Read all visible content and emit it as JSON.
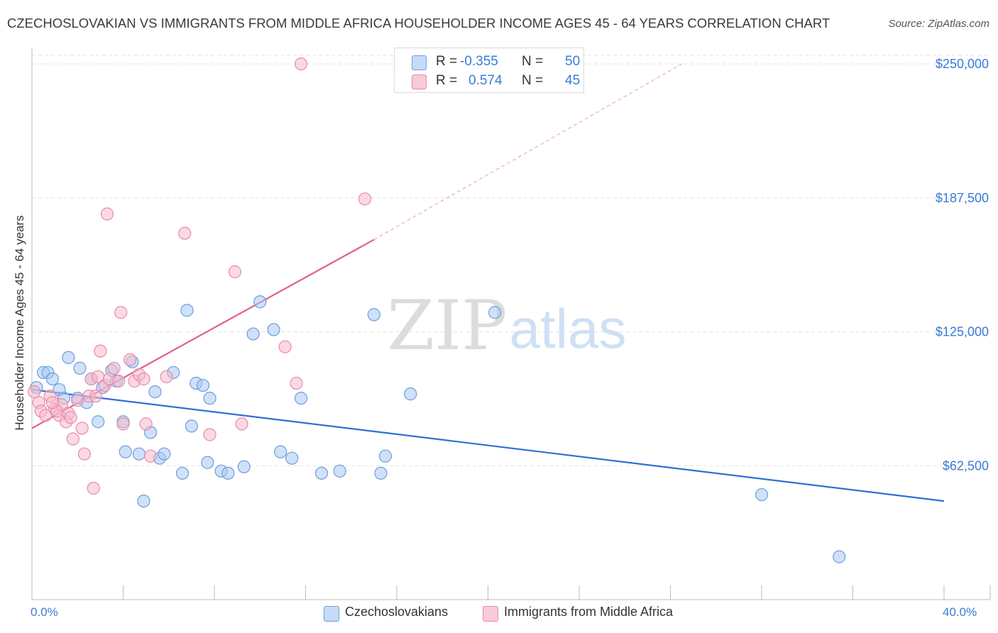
{
  "title": "CZECHOSLOVAKIAN VS IMMIGRANTS FROM MIDDLE AFRICA HOUSEHOLDER INCOME AGES 45 - 64 YEARS CORRELATION CHART",
  "source": "Source: ZipAtlas.com",
  "watermark": {
    "zip": "ZIP",
    "atlas": "atlas"
  },
  "colors": {
    "blue_fill": "#a9c8f0",
    "blue_stroke": "#6a9ee0",
    "blue_line": "#2f6fd6",
    "pink_fill": "#f6b9cc",
    "pink_stroke": "#e98aa8",
    "pink_line": "#e0608a",
    "axis_text": "#3a7bd5"
  },
  "legend": {
    "row1": {
      "r_label": "R =",
      "r_value": "-0.355",
      "n_label": "N =",
      "n_value": "50"
    },
    "row2": {
      "r_label": "R =",
      "r_value": "0.574",
      "n_label": "N =",
      "n_value": "45"
    }
  },
  "bottom_legend": {
    "series1": "Czechoslovakians",
    "series2": "Immigrants from Middle Africa"
  },
  "chart_data": {
    "type": "scatter",
    "xlabel": "",
    "ylabel": "Householder Income Ages 45 - 64 years",
    "xlim": [
      0,
      40
    ],
    "ylim": [
      0,
      255000
    ],
    "x_tick_labels": [
      "0.0%",
      "40.0%"
    ],
    "y_ticks": [
      62500,
      125000,
      187500,
      250000
    ],
    "y_tick_labels": [
      "$62,500",
      "$125,000",
      "$187,500",
      "$250,000"
    ],
    "grid": true,
    "series": [
      {
        "name": "Czechoslovakians",
        "points": [
          [
            0.2,
            99000
          ],
          [
            0.5,
            106000
          ],
          [
            0.7,
            106000
          ],
          [
            0.9,
            103000
          ],
          [
            1.2,
            98000
          ],
          [
            1.4,
            94000
          ],
          [
            1.6,
            113000
          ],
          [
            2.0,
            94000
          ],
          [
            2.1,
            108000
          ],
          [
            2.4,
            92000
          ],
          [
            2.6,
            103000
          ],
          [
            2.9,
            83000
          ],
          [
            3.1,
            99000
          ],
          [
            3.5,
            107000
          ],
          [
            3.7,
            102000
          ],
          [
            4.0,
            83000
          ],
          [
            4.1,
            69000
          ],
          [
            4.4,
            111000
          ],
          [
            4.7,
            68000
          ],
          [
            4.9,
            46000
          ],
          [
            5.2,
            78000
          ],
          [
            5.4,
            97000
          ],
          [
            5.6,
            66000
          ],
          [
            5.8,
            68000
          ],
          [
            6.2,
            106000
          ],
          [
            6.6,
            59000
          ],
          [
            6.8,
            135000
          ],
          [
            7.0,
            81000
          ],
          [
            7.2,
            101000
          ],
          [
            7.5,
            100000
          ],
          [
            7.7,
            64000
          ],
          [
            7.8,
            94000
          ],
          [
            8.3,
            60000
          ],
          [
            8.6,
            59000
          ],
          [
            9.3,
            62000
          ],
          [
            9.7,
            124000
          ],
          [
            10.0,
            139000
          ],
          [
            10.6,
            126000
          ],
          [
            10.9,
            69000
          ],
          [
            11.4,
            66000
          ],
          [
            11.8,
            94000
          ],
          [
            12.7,
            59000
          ],
          [
            13.5,
            60000
          ],
          [
            15.0,
            133000
          ],
          [
            15.3,
            59000
          ],
          [
            15.5,
            67000
          ],
          [
            16.6,
            96000
          ],
          [
            20.3,
            134000
          ],
          [
            32.0,
            49000
          ],
          [
            35.4,
            20000
          ]
        ]
      },
      {
        "name": "Immigrants from Middle Africa",
        "points": [
          [
            0.1,
            97000
          ],
          [
            0.3,
            92000
          ],
          [
            0.4,
            88000
          ],
          [
            0.6,
            86000
          ],
          [
            0.8,
            95000
          ],
          [
            1.0,
            89000
          ],
          [
            1.2,
            86000
          ],
          [
            1.3,
            91000
          ],
          [
            1.5,
            83000
          ],
          [
            1.6,
            87000
          ],
          [
            1.7,
            85000
          ],
          [
            1.8,
            75000
          ],
          [
            2.0,
            93000
          ],
          [
            2.2,
            80000
          ],
          [
            2.3,
            68000
          ],
          [
            2.5,
            95000
          ],
          [
            2.6,
            103000
          ],
          [
            2.7,
            52000
          ],
          [
            2.9,
            104000
          ],
          [
            3.0,
            116000
          ],
          [
            3.2,
            100000
          ],
          [
            3.3,
            180000
          ],
          [
            3.4,
            103000
          ],
          [
            3.6,
            108000
          ],
          [
            3.8,
            102000
          ],
          [
            3.9,
            134000
          ],
          [
            4.0,
            82000
          ],
          [
            4.3,
            112000
          ],
          [
            4.5,
            102000
          ],
          [
            4.7,
            105000
          ],
          [
            4.9,
            103000
          ],
          [
            5.0,
            82000
          ],
          [
            5.2,
            67000
          ],
          [
            5.9,
            104000
          ],
          [
            6.7,
            171000
          ],
          [
            7.8,
            77000
          ],
          [
            8.9,
            153000
          ],
          [
            9.2,
            82000
          ],
          [
            11.1,
            118000
          ],
          [
            11.6,
            101000
          ],
          [
            11.8,
            250000
          ],
          [
            14.6,
            187000
          ],
          [
            1.1,
            88000
          ],
          [
            2.8,
            95000
          ],
          [
            0.9,
            92000
          ]
        ]
      }
    ],
    "trend_lines": [
      {
        "series": "Czechoslovakians",
        "x": [
          0,
          40
        ],
        "y": [
          98000,
          46000
        ]
      },
      {
        "series": "Immigrants from Middle Africa",
        "x": [
          0,
          15
        ],
        "y": [
          80000,
          168000
        ],
        "dashed_extension_x": [
          15,
          28.5
        ],
        "dashed_extension_y": [
          168000,
          250000
        ]
      }
    ]
  }
}
